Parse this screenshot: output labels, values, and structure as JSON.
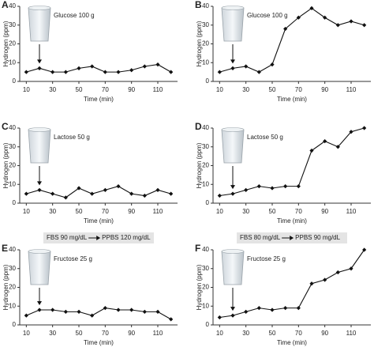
{
  "chart_data": [
    {
      "type": "line",
      "label": "A",
      "annotation": "Glucose 100 g",
      "color": "#111111",
      "x": [
        10,
        20,
        30,
        40,
        50,
        60,
        70,
        80,
        90,
        100,
        110,
        120
      ],
      "values": [
        5,
        7,
        5,
        5,
        7,
        8,
        5,
        5,
        6,
        8,
        9,
        5
      ],
      "xlim": [
        5,
        125
      ],
      "ylim": [
        0,
        40
      ],
      "xticks": [
        10,
        30,
        50,
        70,
        90,
        110
      ],
      "yticks": [
        0,
        10,
        20,
        30,
        40
      ],
      "xlabel": "Time (min)",
      "ylabel": "Hydrogen (ppm)"
    },
    {
      "type": "line",
      "label": "B",
      "annotation": "Glucose 100 g",
      "color": "#111111",
      "x": [
        10,
        20,
        30,
        40,
        50,
        60,
        70,
        80,
        90,
        100,
        110,
        120
      ],
      "values": [
        5,
        7,
        8,
        5,
        9,
        28,
        34,
        39,
        34,
        30,
        32,
        30
      ],
      "xlim": [
        5,
        125
      ],
      "ylim": [
        0,
        40
      ],
      "xticks": [
        10,
        30,
        50,
        70,
        90,
        110
      ],
      "yticks": [
        0,
        10,
        20,
        30,
        40
      ],
      "xlabel": "Time (min)",
      "ylabel": "Hydrogen (ppm)"
    },
    {
      "type": "line",
      "label": "C",
      "annotation": "Lactose 50 g",
      "color": "#111111",
      "x": [
        10,
        20,
        30,
        40,
        50,
        60,
        70,
        80,
        90,
        100,
        110,
        120
      ],
      "values": [
        5,
        7,
        5,
        3,
        8,
        5,
        7,
        9,
        5,
        4,
        7,
        5
      ],
      "xlim": [
        5,
        125
      ],
      "ylim": [
        0,
        40
      ],
      "xticks": [
        10,
        30,
        50,
        70,
        90,
        110
      ],
      "yticks": [
        0,
        10,
        20,
        30,
        40
      ],
      "xlabel": "Time (min)",
      "ylabel": "Hydrogen (ppm)"
    },
    {
      "type": "line",
      "label": "D",
      "annotation": "Lactose 50 g",
      "color": "#111111",
      "x": [
        10,
        20,
        30,
        40,
        50,
        60,
        70,
        80,
        90,
        100,
        110,
        120
      ],
      "values": [
        4,
        5,
        7,
        9,
        8,
        9,
        9,
        28,
        33,
        30,
        38,
        40
      ],
      "xlim": [
        5,
        125
      ],
      "ylim": [
        0,
        40
      ],
      "xticks": [
        10,
        30,
        50,
        70,
        90,
        110
      ],
      "yticks": [
        0,
        10,
        20,
        30,
        40
      ],
      "xlabel": "Time (min)",
      "ylabel": "Hydrogen (ppm)"
    },
    {
      "type": "line",
      "label": "E",
      "annotation": "Fructose 25 g",
      "note": [
        "FBS 90 mg/dL",
        "PPBS 120 mg/dL"
      ],
      "color": "#111111",
      "x": [
        10,
        20,
        30,
        40,
        50,
        60,
        70,
        80,
        90,
        100,
        110,
        120
      ],
      "values": [
        5,
        8,
        8,
        7,
        7,
        5,
        9,
        8,
        8,
        7,
        7,
        3
      ],
      "xlim": [
        5,
        125
      ],
      "ylim": [
        0,
        40
      ],
      "xticks": [
        10,
        30,
        50,
        70,
        90,
        110
      ],
      "yticks": [
        0,
        10,
        20,
        30,
        40
      ],
      "xlabel": "Time (min)",
      "ylabel": "Hydrogen (ppm)"
    },
    {
      "type": "line",
      "label": "F",
      "annotation": "Fructose 25 g",
      "note": [
        "FBS 80 mg/dL",
        "PPBS 90 mg/dL"
      ],
      "color": "#111111",
      "x": [
        10,
        20,
        30,
        40,
        50,
        60,
        70,
        80,
        90,
        100,
        110,
        120
      ],
      "values": [
        4,
        5,
        7,
        9,
        8,
        9,
        9,
        22,
        24,
        28,
        30,
        40
      ],
      "xlim": [
        5,
        125
      ],
      "ylim": [
        0,
        40
      ],
      "xticks": [
        10,
        30,
        50,
        70,
        90,
        110
      ],
      "yticks": [
        0,
        10,
        20,
        30,
        40
      ],
      "xlabel": "Time (min)",
      "ylabel": "Hydrogen (ppm)"
    }
  ]
}
